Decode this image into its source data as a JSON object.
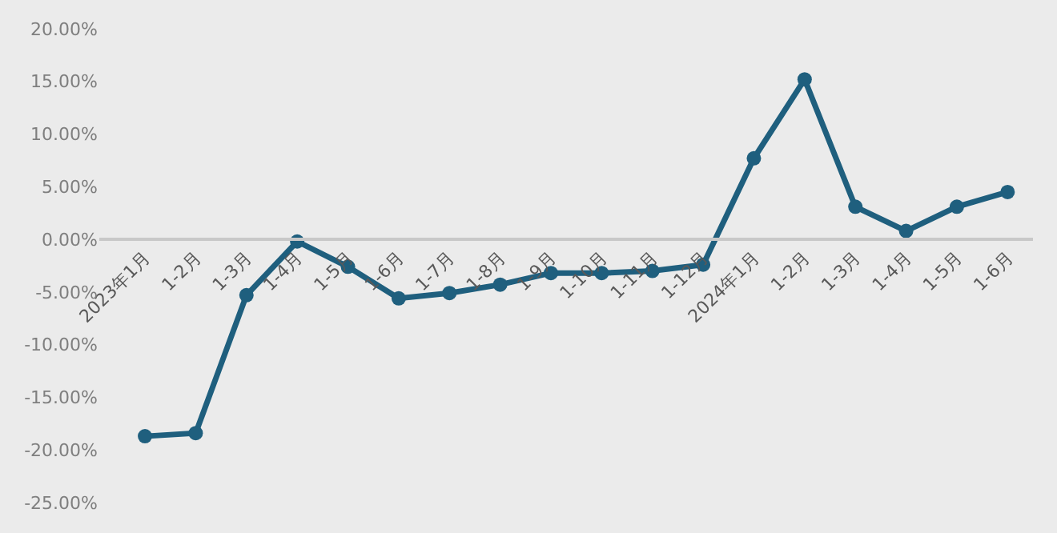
{
  "chart_data": {
    "type": "line",
    "categories": [
      "2023年1月",
      "1-2月",
      "1-3月",
      "1-4月",
      "1-5月",
      "1-6月",
      "1-7月",
      "1-8月",
      "1-9月",
      "1-10月",
      "1-11月",
      "1-12月",
      "2024年1月",
      "1-2月",
      "1-3月",
      "1-4月",
      "1-5月",
      "1-6月"
    ],
    "series": [
      {
        "color": "#1f5f7e",
        "values": [
          -18.7,
          -18.4,
          -5.3,
          -0.2,
          -2.6,
          -5.6,
          -5.1,
          -4.3,
          -3.2,
          -3.2,
          -3.0,
          -2.4,
          7.7,
          15.2,
          3.1,
          0.8,
          3.1,
          4.5
        ]
      }
    ],
    "ylim": [
      -25,
      20
    ],
    "yticks": [
      {
        "value": -25,
        "label": "-25.00%"
      },
      {
        "value": -20,
        "label": "-20.00%"
      },
      {
        "value": -15,
        "label": "-15.00%"
      },
      {
        "value": -10,
        "label": "-10.00%"
      },
      {
        "value": -5,
        "label": "-5.00%"
      },
      {
        "value": 0,
        "label": "0.00%"
      },
      {
        "value": 5,
        "label": "5.00%"
      },
      {
        "value": 10,
        "label": "10.00%"
      },
      {
        "value": 15,
        "label": "15.00%"
      },
      {
        "value": 20,
        "label": "20.00%"
      }
    ],
    "grid": false,
    "marker": "circle",
    "line_style": "solid"
  }
}
